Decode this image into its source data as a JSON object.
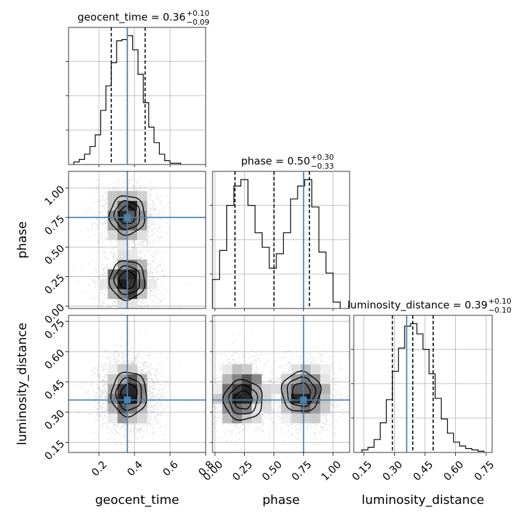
{
  "chart_data": {
    "type": "corner",
    "parameters": [
      "geocent_time",
      "phase",
      "luminosity_distance"
    ],
    "truths": {
      "geocent_time": 0.36,
      "phase": 0.75,
      "luminosity_distance": 0.36
    },
    "titles": [
      {
        "label": "geocent_time = 0.36",
        "plus": "+0.10",
        "minus": "−0.09"
      },
      {
        "label": "phase = 0.50",
        "plus": "+0.30",
        "minus": "−0.33"
      },
      {
        "label": "luminosity_distance = 0.39",
        "plus": "+0.10",
        "minus": "−0.10"
      }
    ],
    "axes": {
      "geocent_time": {
        "label": "geocent_time",
        "range": [
          0.03,
          0.8
        ],
        "ticks": [
          0.2,
          0.4,
          0.6,
          0.8
        ],
        "tick_labels": [
          "0.2",
          "0.4",
          "0.6",
          "0.8"
        ]
      },
      "phase": {
        "label": "phase",
        "range": [
          -0.02,
          1.14
        ],
        "ticks": [
          0.0,
          0.25,
          0.5,
          0.75,
          1.0
        ],
        "tick_labels": [
          "0.00",
          "0.25",
          "0.50",
          "0.75",
          "1.00"
        ]
      },
      "luminosity_distance": {
        "label": "luminosity_distance",
        "range": [
          0.1,
          0.78
        ],
        "ticks": [
          0.15,
          0.3,
          0.45,
          0.6,
          0.75
        ],
        "tick_labels": [
          "0.15",
          "0.30",
          "0.45",
          "0.60",
          "0.75"
        ]
      }
    },
    "quantile_lines": {
      "geocent_time": [
        0.27,
        0.36,
        0.46
      ],
      "phase": [
        0.17,
        0.5,
        0.8
      ],
      "luminosity_distance": [
        0.29,
        0.39,
        0.49
      ]
    },
    "histograms": {
      "geocent_time": {
        "edges": [
          0.06,
          0.09,
          0.12,
          0.15,
          0.18,
          0.21,
          0.24,
          0.27,
          0.3,
          0.33,
          0.36,
          0.39,
          0.42,
          0.45,
          0.48,
          0.51,
          0.54,
          0.57,
          0.6,
          0.63,
          0.66
        ],
        "counts": [
          2,
          4,
          8,
          14,
          23,
          42,
          61,
          79,
          96,
          97,
          100,
          89,
          70,
          48,
          29,
          17,
          8,
          3,
          1,
          1
        ]
      },
      "phase": {
        "edges": [
          -0.02,
          0.04,
          0.1,
          0.16,
          0.22,
          0.28,
          0.34,
          0.4,
          0.46,
          0.52,
          0.58,
          0.64,
          0.7,
          0.76,
          0.82,
          0.88,
          0.94,
          1.0,
          1.06
        ],
        "counts": [
          18,
          36,
          64,
          76,
          80,
          64,
          47,
          38,
          25,
          34,
          47,
          68,
          76,
          80,
          63,
          35,
          22,
          4
        ]
      },
      "luminosity_distance": {
        "edges": [
          0.14,
          0.17,
          0.2,
          0.23,
          0.26,
          0.29,
          0.32,
          0.35,
          0.38,
          0.41,
          0.44,
          0.47,
          0.5,
          0.53,
          0.56,
          0.59,
          0.62,
          0.65,
          0.68,
          0.71,
          0.74
        ],
        "counts": [
          2,
          4,
          10,
          23,
          41,
          63,
          81,
          98,
          100,
          92,
          80,
          61,
          42,
          26,
          15,
          8,
          5,
          3,
          2,
          1
        ]
      }
    }
  }
}
